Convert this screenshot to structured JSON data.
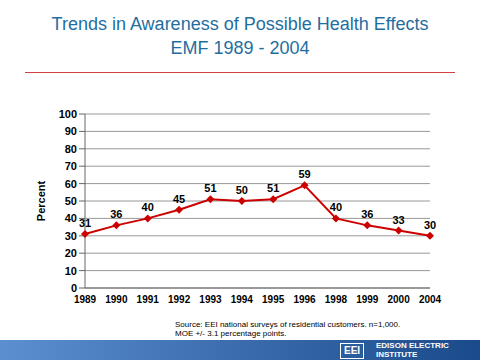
{
  "chart_data": {
    "type": "line",
    "title": "Trends in Awareness of Possible Health Effects",
    "subtitle": "EMF 1989 - 2004",
    "y_label": "Percent",
    "categories": [
      "1989",
      "1990",
      "1991",
      "1992",
      "1993",
      "1994",
      "1995",
      "1996",
      "1998",
      "1999",
      "2000",
      "2004"
    ],
    "values": [
      31,
      36,
      40,
      45,
      51,
      50,
      51,
      59,
      40,
      36,
      33,
      30
    ],
    "color": "#cc0000",
    "marker": "diamond",
    "ylim": [
      0,
      100
    ],
    "yticks": [
      0,
      10,
      20,
      30,
      40,
      50,
      60,
      70,
      80,
      90,
      100
    ],
    "grid": true,
    "data_labels": true,
    "annotations": [
      "Source: EEI national surveys of residential customers. n=1,000.",
      "MOE +/- 3.1 percentage points.",
      "EEI",
      "EDISON ELECTRIC",
      "INSTITUTE"
    ]
  }
}
